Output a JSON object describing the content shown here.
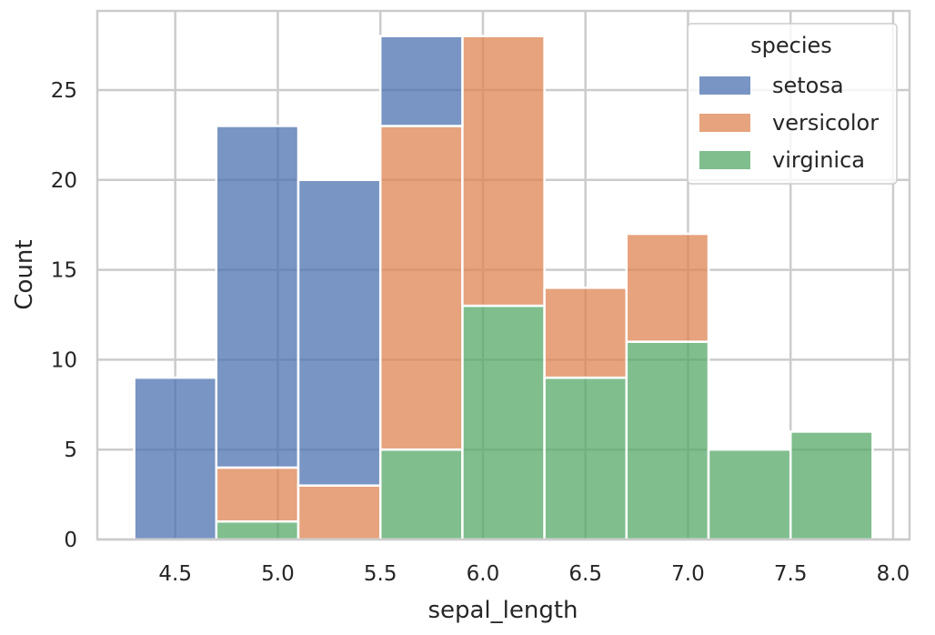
{
  "chart_data": {
    "type": "bar",
    "stacked": true,
    "histogram": true,
    "xlabel": "sepal_length",
    "ylabel": "Count",
    "xlim": [
      4.12,
      8.08
    ],
    "ylim": [
      0,
      29.4
    ],
    "xticks": [
      "4.5",
      "5.0",
      "5.5",
      "6.0",
      "6.5",
      "7.0",
      "7.5",
      "8.0"
    ],
    "yticks": [
      "0",
      "5",
      "10",
      "15",
      "20",
      "25"
    ],
    "grid": true,
    "bin_edges": [
      4.3,
      4.7,
      5.1,
      5.5,
      5.9,
      6.3,
      6.7,
      7.1,
      7.5,
      7.9
    ],
    "series": [
      {
        "name": "virginica",
        "color": "#55a868",
        "values": [
          0,
          1,
          0,
          5,
          13,
          9,
          11,
          5,
          6
        ]
      },
      {
        "name": "versicolor",
        "color": "#dd8452",
        "values": [
          0,
          3,
          3,
          18,
          15,
          5,
          6,
          0,
          0
        ]
      },
      {
        "name": "setosa",
        "color": "#4c72b0",
        "values": [
          9,
          19,
          17,
          5,
          0,
          0,
          0,
          0,
          0
        ]
      }
    ],
    "legend": {
      "title": "species",
      "placement": "top-right",
      "entries": [
        {
          "label": "setosa",
          "color": "#4c72b0"
        },
        {
          "label": "versicolor",
          "color": "#dd8452"
        },
        {
          "label": "virginica",
          "color": "#55a868"
        }
      ]
    }
  }
}
